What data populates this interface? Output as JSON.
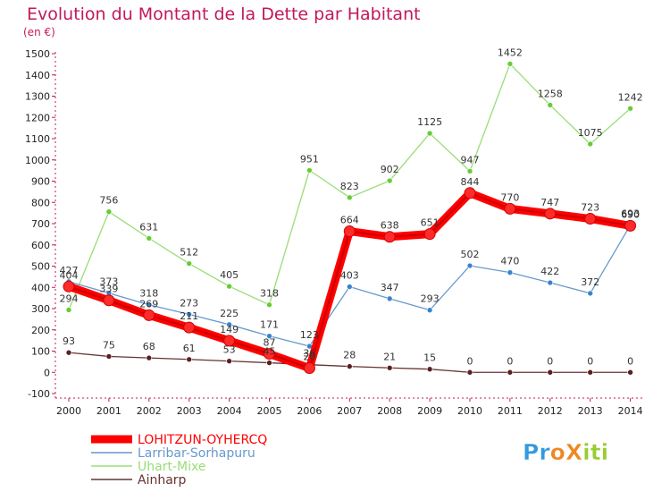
{
  "chart_data": {
    "type": "line",
    "title": "Evolution du Montant de la Dette par Habitant",
    "ylabel": "(en €)",
    "xlabel": "",
    "ylim": [
      -100,
      1500
    ],
    "yticks": [
      -100,
      0,
      100,
      200,
      300,
      400,
      500,
      600,
      700,
      800,
      900,
      1000,
      1100,
      1200,
      1300,
      1400,
      1500
    ],
    "categories": [
      "2000",
      "2001",
      "2002",
      "2003",
      "2004",
      "2005",
      "2006",
      "2007",
      "2008",
      "2009",
      "2010",
      "2011",
      "2012",
      "2013",
      "2014"
    ],
    "grid": false,
    "legend_position": "bottom-left",
    "series": [
      {
        "name": "LOHITZUN-OYHERCQ",
        "color": "#ff0000",
        "emphasis": true,
        "values": [
          404,
          339,
          269,
          211,
          149,
          87,
          20,
          664,
          638,
          651,
          844,
          770,
          747,
          723,
          690
        ],
        "labels": [
          "404",
          "339",
          "269",
          "211",
          "149",
          "87",
          "20",
          "664",
          "638",
          "651",
          "844",
          "770",
          "747",
          "723",
          "690"
        ]
      },
      {
        "name": "Larribar-Sorhapuru",
        "color": "#6699cc",
        "marker": "#3a83cc",
        "values": [
          427,
          373,
          318,
          273,
          225,
          171,
          123,
          403,
          347,
          293,
          502,
          470,
          422,
          372,
          693
        ],
        "labels": [
          "427",
          "373",
          "318",
          "273",
          "225",
          "171",
          "123",
          "403",
          "347",
          "293",
          "502",
          "470",
          "422",
          "372",
          "693"
        ]
      },
      {
        "name": "Uhart-Mixe",
        "color": "#99dd77",
        "marker": "#66cc33",
        "values": [
          294,
          756,
          631,
          512,
          405,
          318,
          951,
          823,
          902,
          1125,
          947,
          1452,
          1258,
          1075,
          1242
        ],
        "labels": [
          "294",
          "756",
          "631",
          "512",
          "405",
          "318",
          "951",
          "823",
          "902",
          "1125",
          "947",
          "1452",
          "1258",
          "1075",
          "1242"
        ]
      },
      {
        "name": "Ainharp",
        "color": "#663333",
        "marker": "#5a1f1f",
        "values": [
          93,
          75,
          68,
          61,
          53,
          45,
          36,
          28,
          21,
          15,
          0,
          0,
          0,
          0,
          0
        ],
        "labels": [
          "93",
          "75",
          "68",
          "61",
          "53",
          "45",
          "36",
          "28",
          "21",
          "15",
          "0",
          "0",
          "0",
          "0",
          "0"
        ]
      }
    ]
  },
  "logo": {
    "text": "ProXiti",
    "letters": [
      "P",
      "r",
      "o",
      "X",
      "i",
      "t",
      "i"
    ],
    "colors": [
      "#3399dd",
      "#3399dd",
      "#ee8822",
      "#ee8822",
      "#99cc33",
      "#99cc33",
      "#99cc33"
    ]
  }
}
